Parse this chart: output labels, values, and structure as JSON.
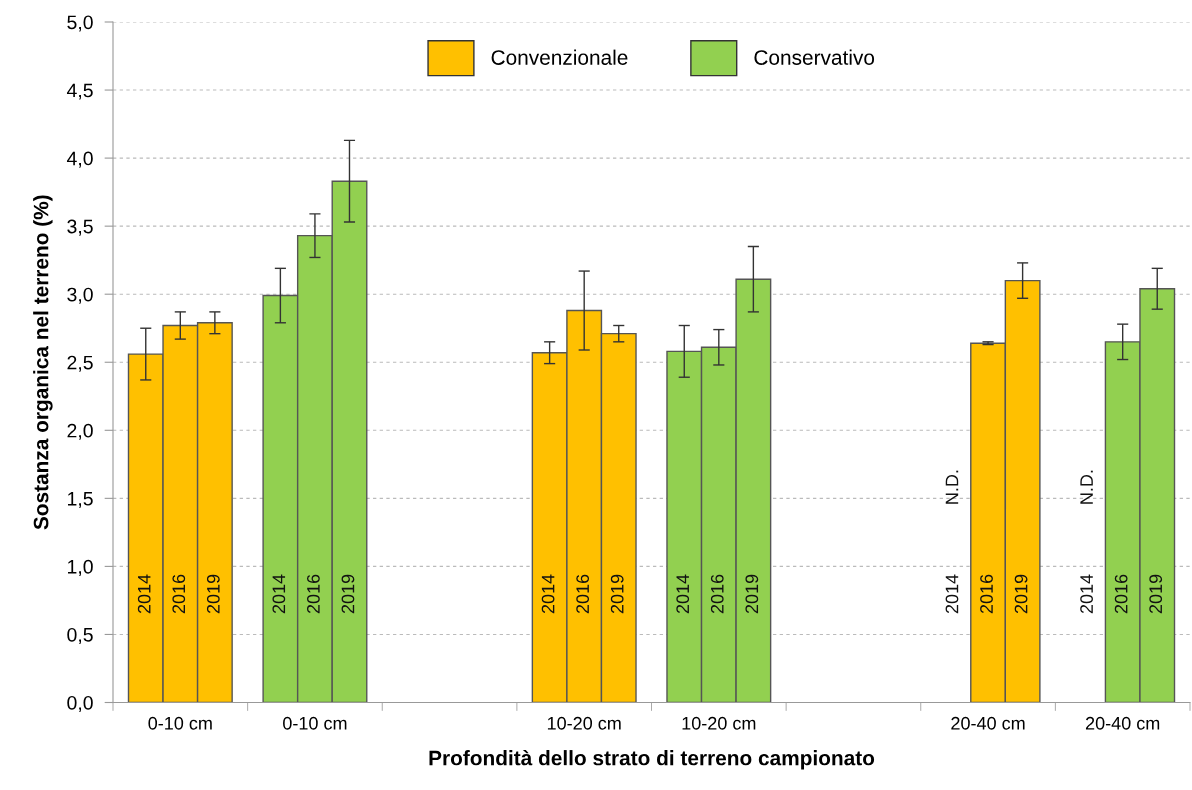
{
  "chart_data": {
    "type": "bar",
    "xlabel": "Profondità dello strato di terreno campionato",
    "ylabel": "Sostanza organica nel terreno (%)",
    "categories": [
      "0-10 cm",
      "0-10 cm",
      null,
      "10-20 cm",
      "10-20 cm",
      null,
      "20-40 cm",
      "20-40 cm"
    ],
    "series": [
      {
        "name": "2014",
        "colors": [
          "#ffc000",
          "#92d050",
          null,
          "#ffc000",
          "#92d050",
          null,
          "#ffc000",
          "#92d050"
        ],
        "values": [
          2.56,
          2.99,
          null,
          2.57,
          2.58,
          null,
          null,
          null
        ],
        "errors": [
          0.19,
          0.2,
          null,
          0.08,
          0.19,
          null,
          null,
          null
        ],
        "value_labels": [
          null,
          null,
          null,
          null,
          null,
          null,
          "N.D.",
          "N.D."
        ]
      },
      {
        "name": "2016",
        "colors": [
          "#ffc000",
          "#92d050",
          null,
          "#ffc000",
          "#92d050",
          null,
          "#ffc000",
          "#92d050"
        ],
        "values": [
          2.77,
          3.43,
          null,
          2.88,
          2.61,
          null,
          2.64,
          2.65
        ],
        "errors": [
          0.1,
          0.16,
          null,
          0.29,
          0.13,
          null,
          0.01,
          0.13
        ]
      },
      {
        "name": "2019",
        "colors": [
          "#ffc000",
          "#92d050",
          null,
          "#ffc000",
          "#92d050",
          null,
          "#ffc000",
          "#92d050"
        ],
        "values": [
          2.79,
          3.83,
          null,
          2.71,
          3.11,
          null,
          3.1,
          3.04
        ],
        "errors": [
          0.08,
          0.3,
          null,
          0.06,
          0.24,
          null,
          0.13,
          0.15
        ]
      },
      {
        "name": "Convenzionale",
        "color": "#ffc000",
        "values": [
          null,
          null,
          null,
          null,
          null,
          null,
          null,
          null
        ]
      },
      {
        "name": "Conservativo",
        "color": "#92d050",
        "values": [
          null,
          null,
          null,
          null,
          null,
          null,
          null,
          null
        ]
      }
    ],
    "ylim": [
      0,
      5
    ],
    "yticks": [
      {
        "value": 0,
        "label": "0,0"
      },
      {
        "value": 0.5,
        "label": "0,5"
      },
      {
        "value": 1,
        "label": "1,0"
      },
      {
        "value": 1.5,
        "label": "1,5"
      },
      {
        "value": 2,
        "label": "2,0"
      },
      {
        "value": 2.5,
        "label": "2,5"
      },
      {
        "value": 3,
        "label": "3,0"
      },
      {
        "value": 3.5,
        "label": "3,5"
      },
      {
        "value": 4,
        "label": "4,0"
      },
      {
        "value": 4.5,
        "label": "4,5"
      },
      {
        "value": 5,
        "label": "5,0"
      }
    ],
    "grid": "y",
    "legend": "top"
  }
}
